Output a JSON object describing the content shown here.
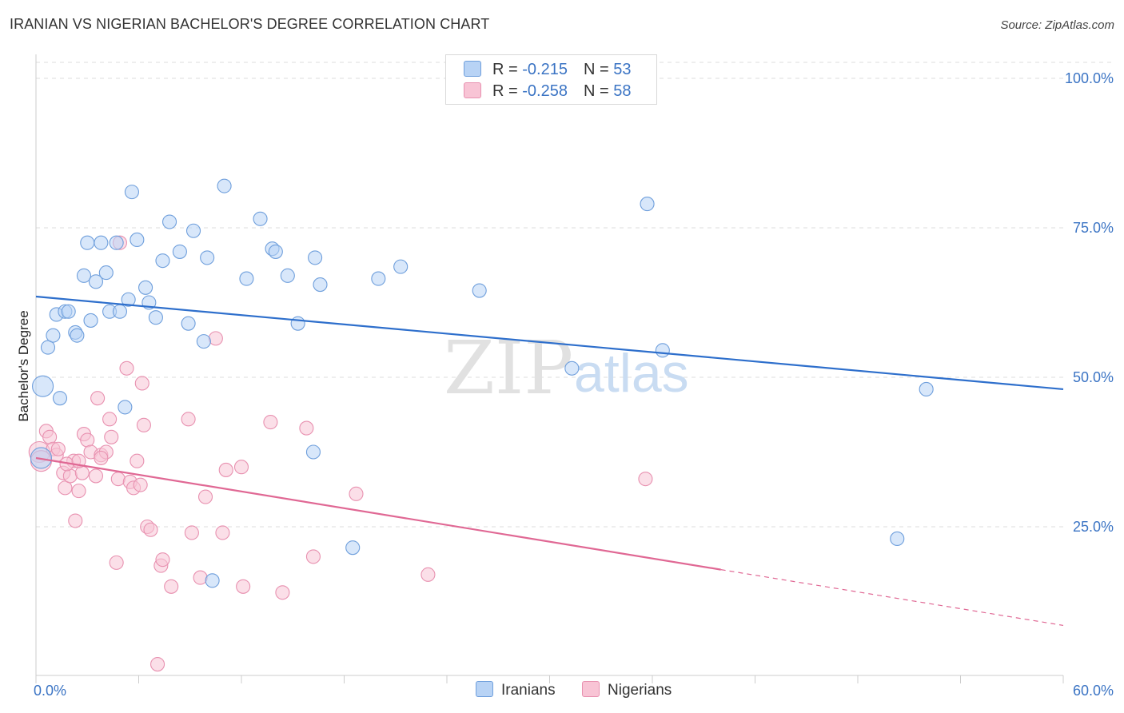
{
  "title": "IRANIAN VS NIGERIAN BACHELOR'S DEGREE CORRELATION CHART",
  "source": "Source: ZipAtlas.com",
  "watermark": {
    "zip": "ZIP",
    "atlas": "atlas"
  },
  "colors": {
    "iranians_fill": "#b8d3f5",
    "iranians_stroke": "#6f9fdc",
    "iranians_line": "#2e6fcc",
    "nigerians_fill": "#f8c4d5",
    "nigerians_stroke": "#e891b0",
    "nigerians_line": "#e06894",
    "axis_text": "#3b74c4",
    "grid": "#dddddd"
  },
  "legend_top": [
    {
      "r_label": "R = ",
      "r_value": "-0.215",
      "n_label": "N = ",
      "n_value": "53"
    },
    {
      "r_label": "R = ",
      "r_value": "-0.258",
      "n_label": "N = ",
      "n_value": "58"
    }
  ],
  "legend_bottom": [
    "Iranians",
    "Nigerians"
  ],
  "chart_data": {
    "type": "scatter",
    "title": "IRANIAN VS NIGERIAN BACHELOR'S DEGREE CORRELATION CHART",
    "xlabel": "",
    "ylabel": "Bachelor's Degree",
    "xlim": [
      0,
      60
    ],
    "ylim": [
      0,
      105
    ],
    "x_tick_labels": [
      {
        "value": 0,
        "label": "0.0%"
      },
      {
        "value": 60,
        "label": "60.0%"
      }
    ],
    "y_tick_labels": [
      {
        "value": 25,
        "label": "25.0%"
      },
      {
        "value": 50,
        "label": "50.0%"
      },
      {
        "value": 75,
        "label": "75.0%"
      },
      {
        "value": 100,
        "label": "100.0%"
      }
    ],
    "series": [
      {
        "name": "Iranians",
        "R": -0.215,
        "N": 53,
        "trend": {
          "x0": 0,
          "y0": 63.5,
          "x1": 60,
          "y1": 48.0,
          "solid_until": 60
        },
        "points": [
          [
            0.3,
            36.5
          ],
          [
            0.4,
            48.5
          ],
          [
            0.7,
            55.0
          ],
          [
            1.0,
            57.0
          ],
          [
            1.2,
            60.5
          ],
          [
            1.4,
            46.5
          ],
          [
            1.7,
            61.0
          ],
          [
            1.9,
            61.0
          ],
          [
            2.3,
            57.5
          ],
          [
            2.4,
            57.0
          ],
          [
            2.8,
            67.0
          ],
          [
            3.0,
            72.5
          ],
          [
            3.2,
            59.5
          ],
          [
            3.5,
            66.0
          ],
          [
            3.8,
            72.5
          ],
          [
            4.1,
            67.5
          ],
          [
            4.3,
            61.0
          ],
          [
            4.7,
            72.5
          ],
          [
            4.9,
            61.0
          ],
          [
            5.2,
            45.0
          ],
          [
            5.4,
            63.0
          ],
          [
            5.6,
            81.0
          ],
          [
            5.9,
            73.0
          ],
          [
            6.4,
            65.0
          ],
          [
            6.6,
            62.5
          ],
          [
            7.0,
            60.0
          ],
          [
            7.4,
            69.5
          ],
          [
            7.8,
            76.0
          ],
          [
            8.4,
            71.0
          ],
          [
            8.9,
            59.0
          ],
          [
            9.2,
            74.5
          ],
          [
            9.8,
            56.0
          ],
          [
            10.0,
            70.0
          ],
          [
            11.0,
            82.0
          ],
          [
            12.3,
            66.5
          ],
          [
            13.1,
            76.5
          ],
          [
            13.8,
            71.5
          ],
          [
            14.0,
            71.0
          ],
          [
            14.7,
            67.0
          ],
          [
            15.3,
            59.0
          ],
          [
            16.2,
            37.5
          ],
          [
            16.3,
            70.0
          ],
          [
            16.6,
            65.5
          ],
          [
            18.5,
            21.5
          ],
          [
            20.0,
            66.5
          ],
          [
            21.3,
            68.5
          ],
          [
            25.9,
            64.5
          ],
          [
            31.3,
            51.5
          ],
          [
            35.7,
            79.0
          ],
          [
            36.6,
            54.5
          ],
          [
            52.0,
            48.0
          ],
          [
            50.3,
            23.0
          ],
          [
            10.3,
            16.0
          ]
        ]
      },
      {
        "name": "Nigerians",
        "R": -0.258,
        "N": 58,
        "trend": {
          "x0": 0,
          "y0": 36.5,
          "x1": 60,
          "y1": 8.5,
          "solid_until": 40
        },
        "points": [
          [
            0.2,
            37.5
          ],
          [
            0.3,
            36.0
          ],
          [
            0.6,
            41.0
          ],
          [
            0.8,
            40.0
          ],
          [
            1.0,
            38.0
          ],
          [
            1.2,
            37.0
          ],
          [
            1.3,
            38.0
          ],
          [
            1.6,
            34.0
          ],
          [
            1.7,
            31.5
          ],
          [
            2.0,
            33.5
          ],
          [
            2.2,
            36.0
          ],
          [
            2.3,
            26.0
          ],
          [
            2.5,
            31.0
          ],
          [
            2.7,
            34.0
          ],
          [
            2.8,
            40.5
          ],
          [
            3.0,
            39.5
          ],
          [
            3.2,
            37.5
          ],
          [
            3.5,
            33.5
          ],
          [
            3.6,
            46.5
          ],
          [
            3.8,
            37.0
          ],
          [
            4.1,
            37.5
          ],
          [
            4.3,
            43.0
          ],
          [
            4.4,
            40.0
          ],
          [
            4.7,
            19.0
          ],
          [
            4.8,
            33.0
          ],
          [
            4.9,
            72.5
          ],
          [
            5.3,
            51.5
          ],
          [
            5.5,
            32.5
          ],
          [
            5.7,
            31.5
          ],
          [
            5.9,
            36.0
          ],
          [
            6.1,
            32.0
          ],
          [
            6.2,
            49.0
          ],
          [
            6.3,
            42.0
          ],
          [
            6.5,
            25.0
          ],
          [
            6.7,
            24.5
          ],
          [
            7.1,
            2.0
          ],
          [
            7.3,
            18.5
          ],
          [
            7.4,
            19.5
          ],
          [
            7.9,
            15.0
          ],
          [
            8.9,
            43.0
          ],
          [
            9.1,
            24.0
          ],
          [
            9.6,
            16.5
          ],
          [
            9.9,
            30.0
          ],
          [
            10.5,
            56.5
          ],
          [
            10.9,
            24.0
          ],
          [
            11.1,
            34.5
          ],
          [
            12.0,
            35.0
          ],
          [
            12.1,
            15.0
          ],
          [
            13.7,
            42.5
          ],
          [
            14.4,
            14.0
          ],
          [
            15.8,
            41.5
          ],
          [
            16.2,
            20.0
          ],
          [
            18.7,
            30.5
          ],
          [
            22.9,
            17.0
          ],
          [
            35.6,
            33.0
          ],
          [
            1.8,
            35.5
          ],
          [
            2.5,
            36.0
          ],
          [
            3.8,
            36.5
          ]
        ]
      }
    ]
  }
}
